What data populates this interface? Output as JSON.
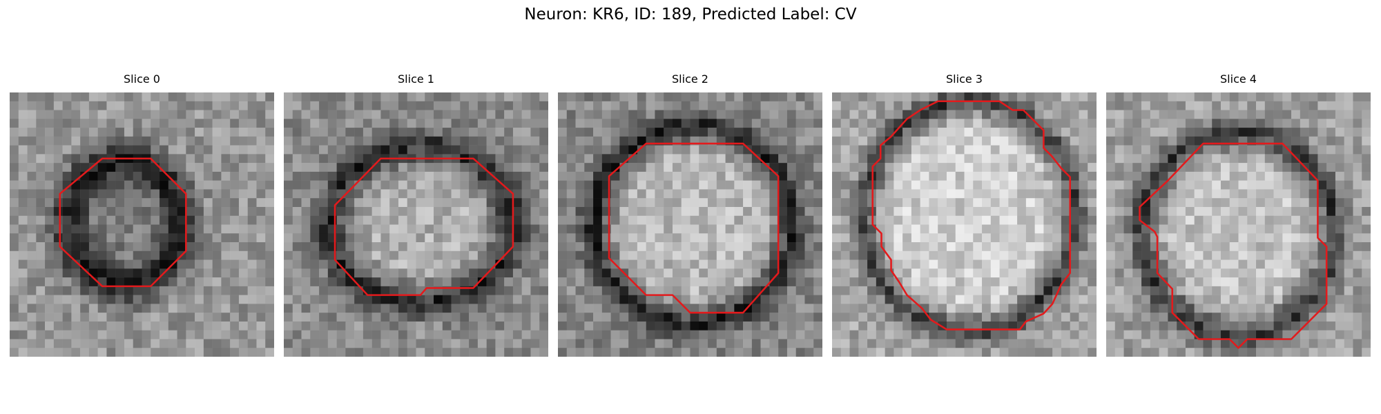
{
  "figure": {
    "title": "Neuron: KR6, ID: 189, Predicted Label: CV"
  },
  "slices": [
    {
      "title": "Slice 0",
      "image_icon": "membrane-ring-image",
      "contour_color": "#e31a1c"
    },
    {
      "title": "Slice 1",
      "image_icon": "membrane-ring-image",
      "contour_color": "#e31a1c"
    },
    {
      "title": "Slice 2",
      "image_icon": "membrane-ring-image",
      "contour_color": "#e31a1c"
    },
    {
      "title": "Slice 3",
      "image_icon": "membrane-ring-image",
      "contour_color": "#e31a1c"
    },
    {
      "title": "Slice 4",
      "image_icon": "membrane-ring-image",
      "contour_color": "#e31a1c"
    }
  ]
}
